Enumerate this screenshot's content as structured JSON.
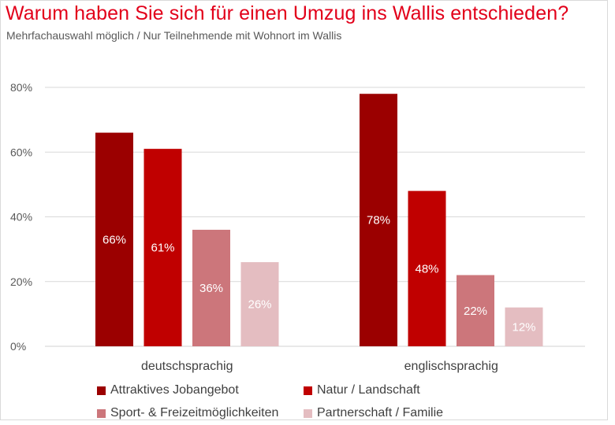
{
  "title": "Warum haben Sie sich für einen Umzug ins Wallis entschieden?",
  "subtitle": "Mehrfachauswahl möglich / Nur Teilnehmende mit Wohnort im Wallis",
  "chart_data": {
    "type": "bar",
    "title": "Warum haben Sie sich für einen Umzug ins Wallis entschieden?",
    "subtitle": "Mehrfachauswahl möglich / Nur Teilnehmende mit Wohnort im Wallis",
    "categories": [
      "deutschsprachig",
      "englischsprachig"
    ],
    "series": [
      {
        "name": "Attraktives Jobangebot",
        "values": [
          66,
          78
        ],
        "labels": [
          "66%",
          "78%"
        ],
        "color": "#9b0000"
      },
      {
        "name": "Natur / Landschaft",
        "values": [
          61,
          48
        ],
        "labels": [
          "61%",
          "48%"
        ],
        "color": "#c00000"
      },
      {
        "name": "Sport- & Freizeitmöglichkeiten",
        "values": [
          36,
          22
        ],
        "labels": [
          "36%",
          "22%"
        ],
        "color": "#cc767b"
      },
      {
        "name": "Partnerschaft / Familie",
        "values": [
          26,
          12
        ],
        "labels": [
          "26%",
          "12%"
        ],
        "color": "#e4bdc1"
      }
    ],
    "yticks": [
      "0%",
      "20%",
      "40%",
      "60%",
      "80%"
    ],
    "ytick_values": [
      0,
      20,
      40,
      60,
      80
    ],
    "ylim": [
      0,
      80
    ],
    "grid": true,
    "legend_position": "bottom"
  }
}
